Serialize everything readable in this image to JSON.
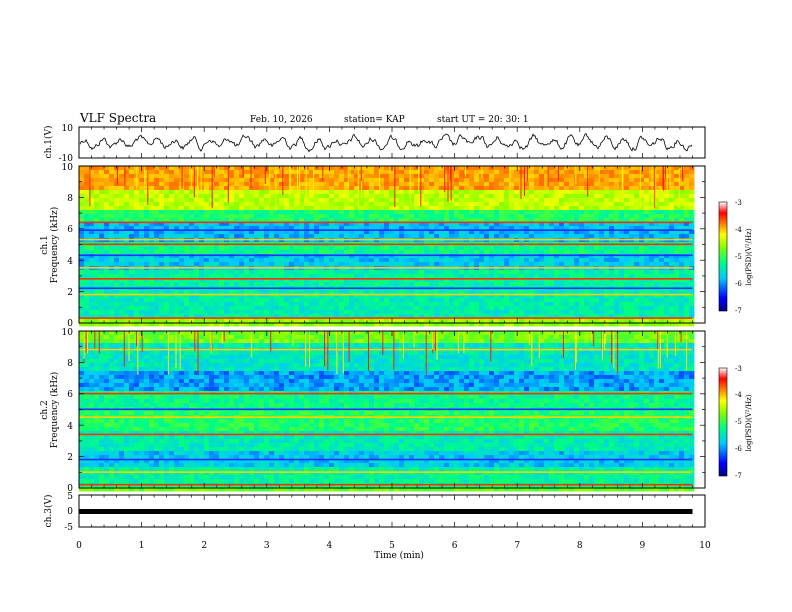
{
  "header": {
    "title": "VLF Spectra",
    "date": "Feb. 10, 2026",
    "station": "station= KAP",
    "start_ut": "start  UT =  20: 30: 1"
  },
  "chart_data": {
    "type": "heatmap",
    "x_axis": {
      "label": "Time  (min)",
      "range": [
        0,
        10
      ],
      "ticks": [
        "0",
        "1",
        "2",
        "3",
        "4",
        "5",
        "6",
        "7",
        "8",
        "9",
        "10"
      ],
      "data_end_min": 9.8
    },
    "panels": [
      {
        "id": "ch1-waveform",
        "type": "line",
        "ylabel": "ch.1(V)",
        "ylim": [
          -10,
          10
        ],
        "ticks": [
          "10",
          "-10"
        ]
      },
      {
        "id": "ch1-spectrogram",
        "type": "heatmap",
        "ylabel_line1": "ch.1",
        "ylabel_line2": "Frequency  (kHz)",
        "ylim": [
          0,
          10
        ],
        "ticks": [
          "0",
          "2",
          "4",
          "6",
          "8",
          "10"
        ],
        "colorbar": {
          "label": "log(PSD)(V²/Hz)",
          "range": [
            -7,
            -3
          ],
          "ticks": [
            "-3",
            "-4",
            "-5",
            "-6",
            "-7"
          ]
        },
        "dominant_bands_khz": [
          0.3,
          1.8,
          2.2,
          2.8,
          3.5,
          4.3,
          5.0,
          5.3,
          5.9,
          6.4
        ]
      },
      {
        "id": "ch2-spectrogram",
        "type": "heatmap",
        "ylabel_line1": "ch.2",
        "ylabel_line2": "Frequency  (kHz)",
        "ylim": [
          0,
          10
        ],
        "ticks": [
          "0",
          "2",
          "4",
          "6",
          "8",
          "10"
        ],
        "colorbar": {
          "label": "log(PSD)(V²/Hz)",
          "range": [
            -7,
            -3
          ],
          "ticks": [
            "-3",
            "-4",
            "-5",
            "-6",
            "-7"
          ]
        },
        "dominant_bands_khz": [
          0.2,
          1.0,
          1.8,
          3.4,
          4.5,
          5.0,
          6.0,
          8.8
        ]
      },
      {
        "id": "ch3-waveform",
        "type": "line",
        "ylabel": "ch.3(V)",
        "ylim": [
          -5,
          5
        ],
        "ticks": [
          "5",
          "0",
          "-5"
        ],
        "constant_value": 0
      }
    ]
  },
  "colors": {
    "colormap": [
      "#000080",
      "#0000ff",
      "#00c8ff",
      "#00ff80",
      "#80ff00",
      "#ffff00",
      "#ff8000",
      "#ff0000",
      "#ffffff"
    ],
    "waveform": "#000000"
  }
}
